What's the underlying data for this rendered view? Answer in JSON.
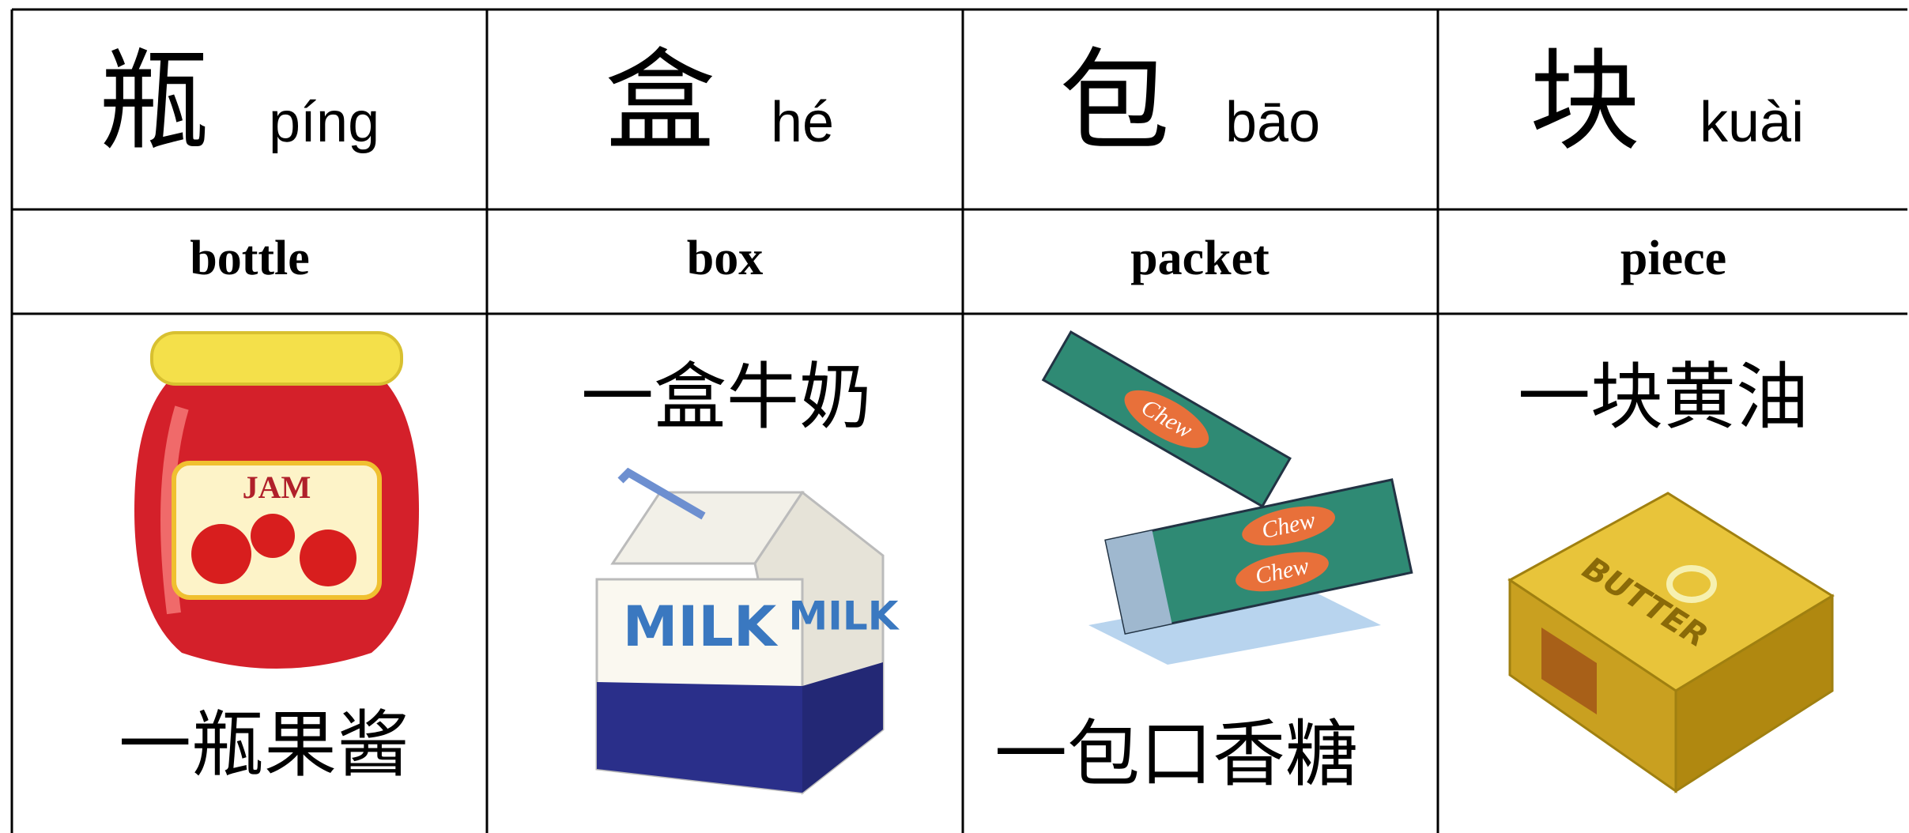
{
  "table": {
    "columns": [
      {
        "character": "瓶",
        "pinyin": "píng",
        "meaning": "bottle",
        "phrase": "一瓶果酱",
        "picture_labels": [
          "JAM"
        ]
      },
      {
        "character": "盒",
        "pinyin": "hé",
        "meaning": "box",
        "phrase": "一盒牛奶",
        "picture_labels": [
          "MILK",
          "MILK"
        ]
      },
      {
        "character": "包",
        "pinyin": "bāo",
        "meaning": "packet",
        "phrase": "一包口香糖",
        "picture_labels": [
          "Chew",
          "Chew",
          "Chew"
        ]
      },
      {
        "character": "块",
        "pinyin": "kuài",
        "meaning": "piece",
        "phrase": "一块黄油",
        "picture_labels": [
          "BUTTER"
        ]
      }
    ]
  }
}
